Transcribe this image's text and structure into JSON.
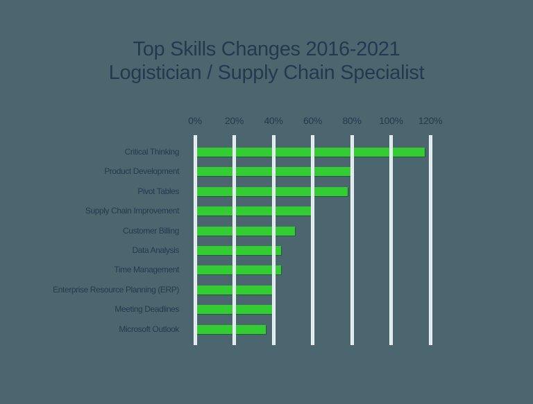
{
  "chart_data": {
    "type": "bar",
    "orientation": "horizontal",
    "title": "Top Skills Changes 2016-2021",
    "subtitle": "Logistician / Supply Chain Specialist",
    "xlabel": "",
    "ylabel": "",
    "xlim": [
      0,
      120
    ],
    "x_ticks": [
      "0%",
      "20%",
      "40%",
      "60%",
      "80%",
      "100%",
      "120%"
    ],
    "x_tick_values": [
      0,
      20,
      40,
      60,
      80,
      100,
      120
    ],
    "grid": true,
    "legend": null,
    "categories": [
      "Critical Thinking",
      "Product Development",
      "Pivot Tables",
      "Supply Chain Improvement",
      "Customer Billing",
      "Data Analysis",
      "Time Management",
      "Enterprise Resource Planning  (ERP)",
      "Meeting Deadlines",
      "Microsoft Outlook"
    ],
    "values": [
      117,
      80,
      78,
      59,
      51,
      44,
      44,
      40,
      40,
      36
    ],
    "unit": "%",
    "colors": {
      "bar": "#33CC33",
      "background": "#4C6670",
      "text": "#1F3B4D",
      "grid": "#E4F1F6"
    }
  }
}
